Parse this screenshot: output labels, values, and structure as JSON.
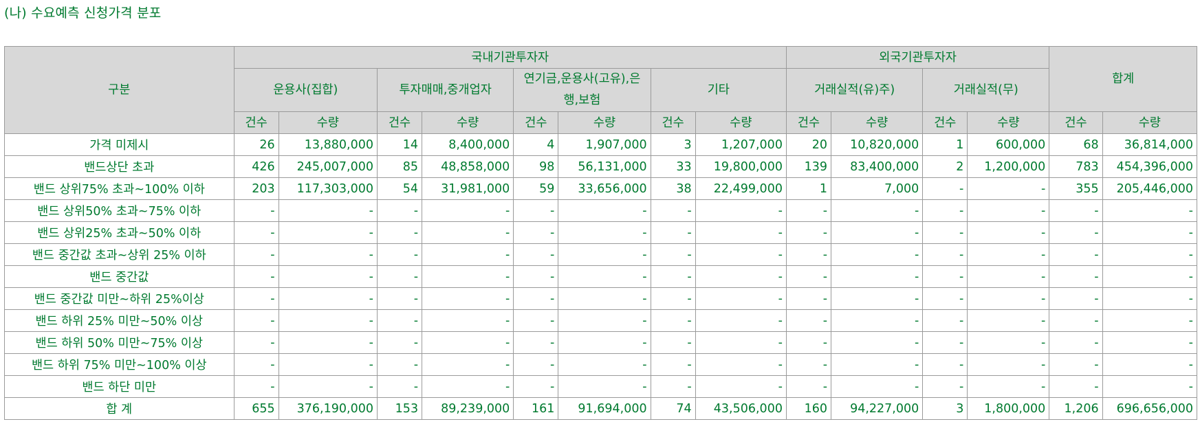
{
  "title": "(나) 수요예측 신청가격 분포",
  "header": {
    "category": "구분",
    "domestic": "국내기관투자자",
    "foreign": "외국기관투자자",
    "total": "합계",
    "sub": {
      "asset_mgmt": "운용사(집합)",
      "broker": "투자매매,중개업자",
      "pension": "연기금,운용사(고유),은행,보험",
      "other": "기타",
      "record_yes": "거래실적(유)주)",
      "record_no": "거래실적(무)"
    },
    "count": "건수",
    "qty": "수량"
  },
  "rows": [
    {
      "label": "가격 미제시",
      "v": [
        "26",
        "13,880,000",
        "14",
        "8,400,000",
        "4",
        "1,907,000",
        "3",
        "1,207,000",
        "20",
        "10,820,000",
        "1",
        "600,000",
        "68",
        "36,814,000"
      ]
    },
    {
      "label": "밴드상단 초과",
      "v": [
        "426",
        "245,007,000",
        "85",
        "48,858,000",
        "98",
        "56,131,000",
        "33",
        "19,800,000",
        "139",
        "83,400,000",
        "2",
        "1,200,000",
        "783",
        "454,396,000"
      ]
    },
    {
      "label": "밴드 상위75% 초과~100% 이하",
      "v": [
        "203",
        "117,303,000",
        "54",
        "31,981,000",
        "59",
        "33,656,000",
        "38",
        "22,499,000",
        "1",
        "7,000",
        "-",
        "-",
        "355",
        "205,446,000"
      ]
    },
    {
      "label": "밴드 상위50% 초과~75% 이하",
      "v": [
        "-",
        "-",
        "-",
        "-",
        "-",
        "-",
        "-",
        "-",
        "-",
        "-",
        "-",
        "-",
        "-",
        "-"
      ]
    },
    {
      "label": "밴드 상위25% 초과~50% 이하",
      "v": [
        "-",
        "-",
        "-",
        "-",
        "-",
        "-",
        "-",
        "-",
        "-",
        "-",
        "-",
        "-",
        "-",
        "-"
      ]
    },
    {
      "label": "밴드 중간값 초과~상위 25% 이하",
      "v": [
        "-",
        "-",
        "-",
        "-",
        "-",
        "-",
        "-",
        "-",
        "-",
        "-",
        "-",
        "-",
        "-",
        "-"
      ]
    },
    {
      "label": "밴드 중간값",
      "v": [
        "-",
        "-",
        "-",
        "-",
        "-",
        "-",
        "-",
        "-",
        "-",
        "-",
        "-",
        "-",
        "-",
        "-"
      ]
    },
    {
      "label": "밴드 중간값 미만~하위 25%이상",
      "v": [
        "-",
        "-",
        "-",
        "-",
        "-",
        "-",
        "-",
        "-",
        "-",
        "-",
        "-",
        "-",
        "-",
        "-"
      ]
    },
    {
      "label": "밴드 하위 25% 미만~50% 이상",
      "v": [
        "-",
        "-",
        "-",
        "-",
        "-",
        "-",
        "-",
        "-",
        "-",
        "-",
        "-",
        "-",
        "-",
        "-"
      ]
    },
    {
      "label": "밴드 하위 50% 미만~75% 이상",
      "v": [
        "-",
        "-",
        "-",
        "-",
        "-",
        "-",
        "-",
        "-",
        "-",
        "-",
        "-",
        "-",
        "-",
        "-"
      ]
    },
    {
      "label": "밴드 하위 75% 미만~100% 이상",
      "v": [
        "-",
        "-",
        "-",
        "-",
        "-",
        "-",
        "-",
        "-",
        "-",
        "-",
        "-",
        "-",
        "-",
        "-"
      ]
    },
    {
      "label": "밴드 하단 미만",
      "v": [
        "-",
        "-",
        "-",
        "-",
        "-",
        "-",
        "-",
        "-",
        "-",
        "-",
        "-",
        "-",
        "-",
        "-"
      ]
    },
    {
      "label": "합 계",
      "v": [
        "655",
        "376,190,000",
        "153",
        "89,239,000",
        "161",
        "91,694,000",
        "74",
        "43,506,000",
        "160",
        "94,227,000",
        "3",
        "1,800,000",
        "1,206",
        "696,656,000"
      ]
    }
  ]
}
